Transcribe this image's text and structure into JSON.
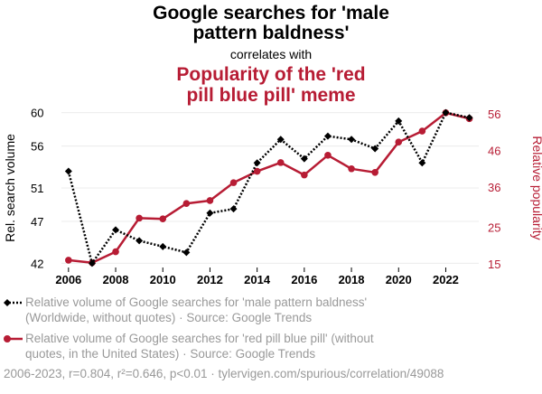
{
  "header": {
    "title_line1": "Google searches for 'male",
    "title_line2": "pattern baldness'",
    "correlates": "correlates with",
    "subtitle_line1": "Popularity of the 'red",
    "subtitle_line2": "pill blue pill' meme"
  },
  "colors": {
    "series1": "#000000",
    "series2": "#b71c34",
    "grid": "#ececec",
    "legend_text": "#999999"
  },
  "legend": [
    {
      "line1": "Relative volume of Google searches for 'male pattern baldness'",
      "line2": "(Worldwide, without quotes) · Source: Google Trends"
    },
    {
      "line1": "Relative volume of Google searches for 'red pill blue pill' (without",
      "line2": "quotes, in the United States) · Source: Google Trends"
    }
  ],
  "footer": {
    "text": "2006-2023, r=0.804, r²=0.646, p<0.01 · tylervigen.com/spurious/correlation/49088"
  },
  "chart_data": {
    "type": "line",
    "x": [
      2006,
      2007,
      2008,
      2009,
      2010,
      2011,
      2012,
      2013,
      2014,
      2015,
      2016,
      2017,
      2018,
      2019,
      2020,
      2021,
      2022,
      2023
    ],
    "xlim": [
      2005.7,
      2023.4
    ],
    "xticks": [
      "2006",
      "2008",
      "2010",
      "2012",
      "2014",
      "2016",
      "2018",
      "2020",
      "2022"
    ],
    "ylabel_left": "Rel. search volume",
    "ylabel_right": "Relative popularity",
    "yticks_left": [
      "42",
      "47",
      "51",
      "56",
      "60"
    ],
    "yticks_right": [
      "15",
      "25",
      "36",
      "46",
      "56"
    ],
    "series": [
      {
        "name": "male pattern baldness",
        "axis": "left",
        "style": "dotted",
        "marker": "diamond",
        "values": [
          53,
          42,
          46,
          44.7,
          44,
          43.3,
          48,
          48.5,
          54,
          56.8,
          54.5,
          57.2,
          56.8,
          55.7,
          59,
          54,
          60,
          59.4
        ],
        "ylim": [
          41.5,
          60.5
        ]
      },
      {
        "name": "red pill blue pill",
        "axis": "right",
        "style": "solid",
        "marker": "circle",
        "values": [
          16,
          15.3,
          18.3,
          27.5,
          27.3,
          31.5,
          32.3,
          37.2,
          40.3,
          42.7,
          39.3,
          44.7,
          41,
          40,
          48.3,
          51.3,
          56.3,
          54.7
        ],
        "ylim": [
          14,
          57.5
        ]
      }
    ]
  }
}
